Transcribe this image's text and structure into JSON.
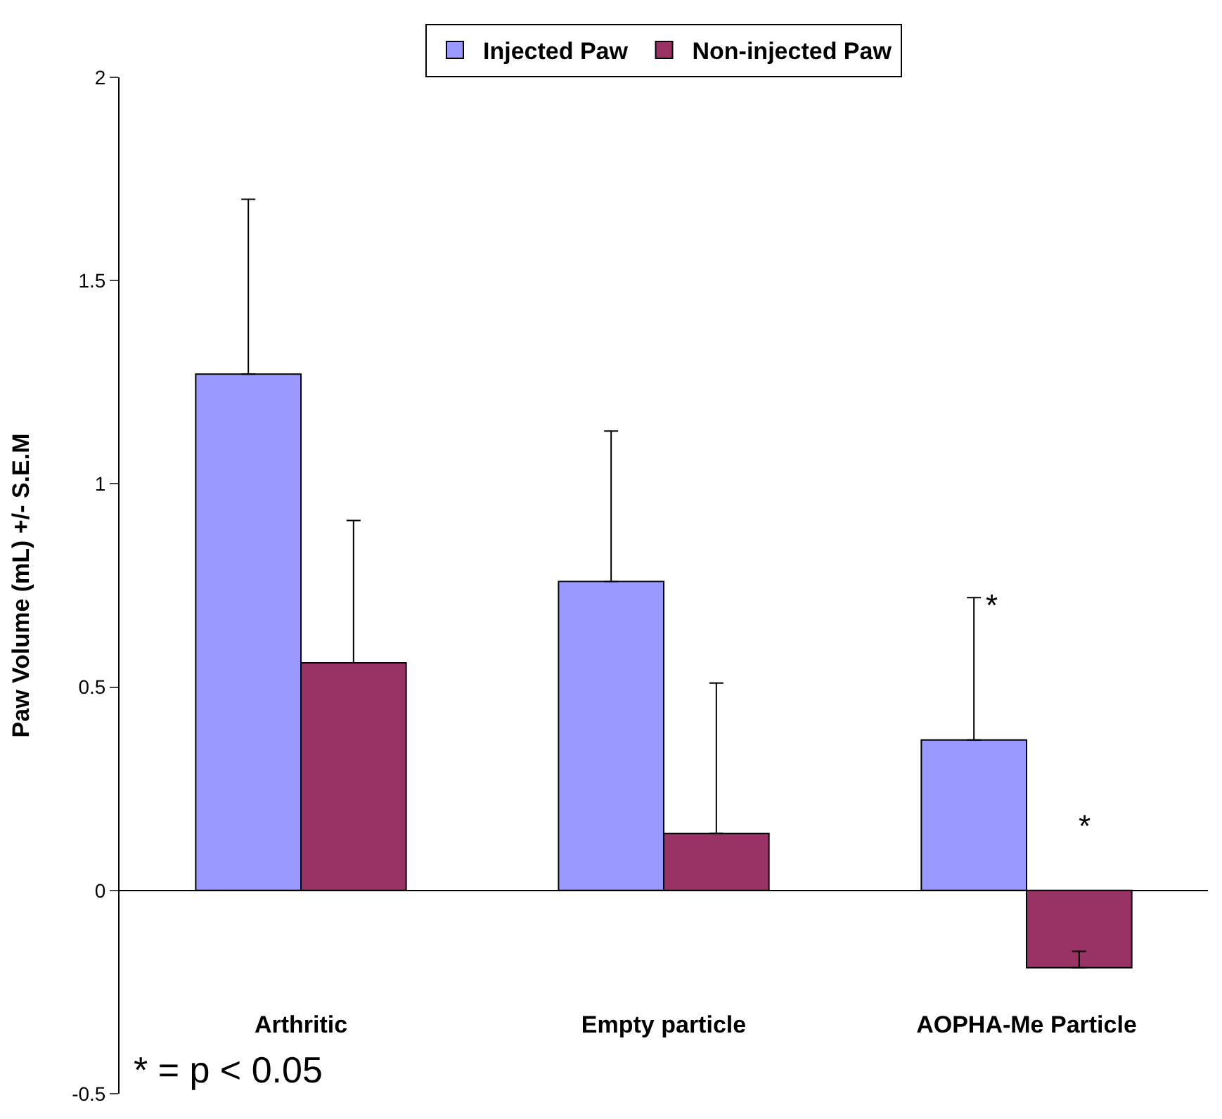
{
  "chart_data": {
    "type": "bar",
    "ylabel": "Paw Volume (mL) +/- S.E.M",
    "categories": [
      "Arthritic",
      "Empty particle",
      "AOPHA-Me Particle"
    ],
    "series": [
      {
        "name": "Injected Paw",
        "color": "#9999ff",
        "values": [
          1.27,
          0.76,
          0.37
        ],
        "errors": [
          [
            1.27,
            1.7
          ],
          [
            0.76,
            1.13
          ],
          [
            0.37,
            0.72
          ]
        ]
      },
      {
        "name": "Non-injected Paw",
        "color": "#993366",
        "values": [
          0.56,
          0.14,
          -0.19
        ],
        "errors": [
          [
            0.56,
            0.91
          ],
          [
            0.14,
            0.51
          ],
          [
            -0.19,
            -0.15
          ]
        ]
      }
    ],
    "ylim": [
      -0.5,
      2
    ],
    "yticks": [
      -0.5,
      0,
      0.5,
      1,
      1.5,
      2
    ],
    "legend": "top",
    "annotations": [
      "*",
      "*",
      "* = p < 0.05"
    ]
  }
}
